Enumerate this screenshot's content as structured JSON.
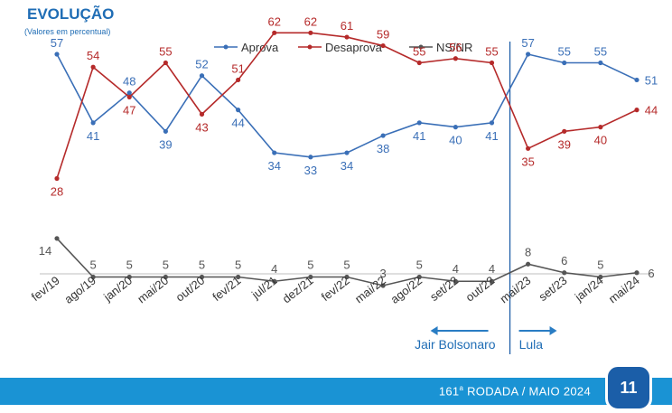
{
  "header": {
    "title": "EVOLUÇÃO",
    "subtitle": "(Valores em percentual)"
  },
  "footer": {
    "rodada_num": "161",
    "rodada_sup": "a",
    "rodada_text": " RODADA / MAIO 2024",
    "page": "11"
  },
  "periods": {
    "left": "Jair Bolsonaro",
    "right": "Lula"
  },
  "colors": {
    "aprova": "#3a6fb7",
    "desaprova": "#b52a2a",
    "nsnr": "#555555",
    "divider": "#1f5fa8",
    "period_text": "#1f6db5"
  },
  "chart_data": {
    "type": "line",
    "categories": [
      "fev/19",
      "ago/19",
      "jan/20",
      "mai/20",
      "out/20",
      "fev/21",
      "jul/21",
      "dez/21",
      "fev/22",
      "mai/22",
      "ago/22",
      "set/22",
      "out/22",
      "mai/23",
      "set/23",
      "jan/24",
      "mai/24"
    ],
    "series": [
      {
        "name": "Aprova",
        "values": [
          57,
          41,
          48,
          39,
          52,
          44,
          34,
          33,
          34,
          38,
          41,
          40,
          41,
          57,
          55,
          55,
          51
        ]
      },
      {
        "name": "Desaprova",
        "values": [
          28,
          54,
          47,
          55,
          43,
          51,
          62,
          62,
          61,
          59,
          55,
          56,
          55,
          35,
          39,
          40,
          44
        ]
      },
      {
        "name": "NS/NR",
        "values": [
          14,
          5,
          5,
          5,
          5,
          5,
          4,
          5,
          5,
          3,
          5,
          4,
          4,
          8,
          6,
          5,
          6
        ]
      }
    ],
    "ylim": [
      0,
      70
    ],
    "legend": "top-center",
    "grid": false,
    "divider_after": "out/22"
  }
}
